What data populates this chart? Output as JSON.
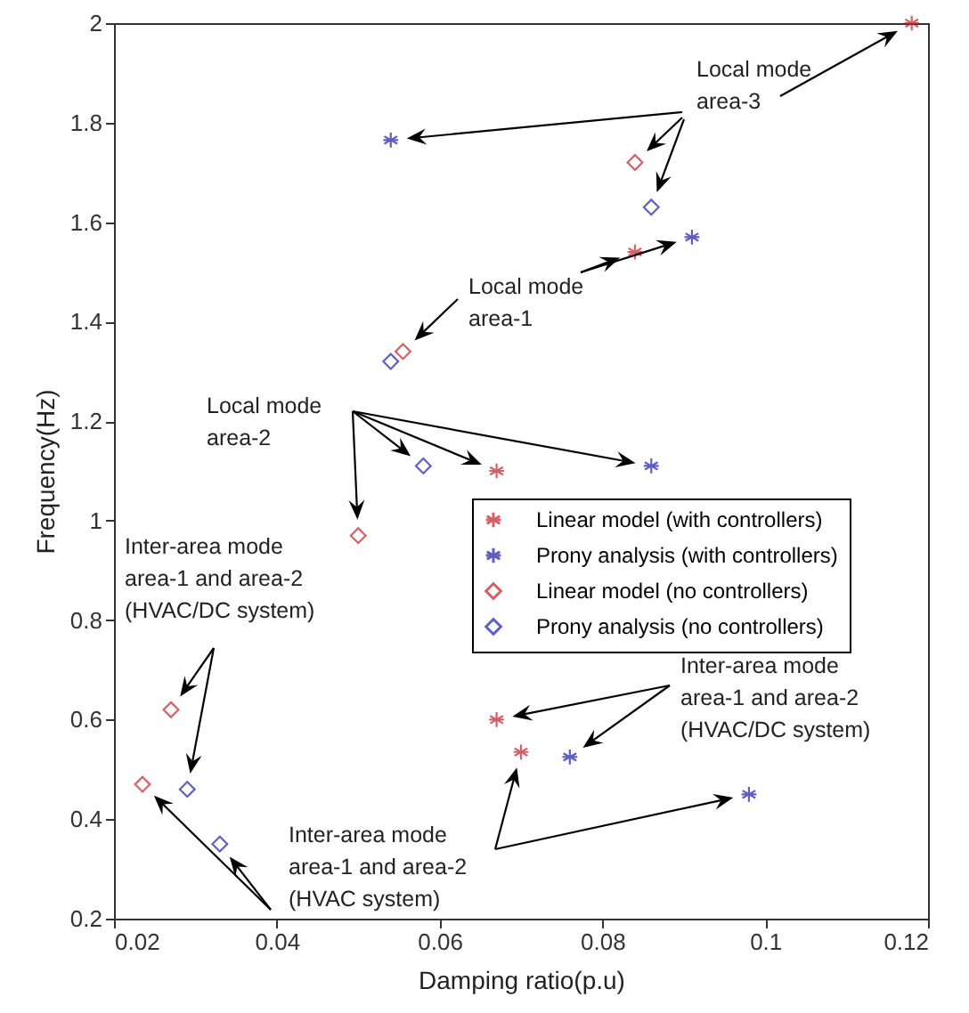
{
  "chart_data": {
    "type": "scatter",
    "xlabel": "Damping ratio(p.u)",
    "ylabel": "Frequency(Hz)",
    "xlim": [
      0.02,
      0.12
    ],
    "xticks": [
      0.02,
      0.04,
      0.06,
      0.08,
      0.1,
      0.12
    ],
    "ylim": [
      0.2,
      2
    ],
    "yticks": [
      0.2,
      0.4,
      0.6,
      0.8,
      1,
      1.2,
      1.4,
      1.6,
      1.8,
      2
    ],
    "grid": false,
    "legend": "right",
    "series": [
      {
        "name": "Linear model (with controllers)",
        "color": "#c0202a",
        "marker": "cross",
        "x": [
          0.118,
          0.084,
          0.067,
          0.067,
          0.07
        ],
        "values": [
          2.0,
          1.54,
          1.1,
          0.6,
          0.535
        ]
      },
      {
        "name": "Prony analysis (with controllers)",
        "color": "#1c1ca8",
        "marker": "cross",
        "x": [
          0.054,
          0.091,
          0.086,
          0.076,
          0.098
        ],
        "values": [
          1.765,
          1.57,
          1.11,
          0.525,
          0.45
        ]
      },
      {
        "name": "Linear model (no controllers)",
        "color": "#c0202a",
        "marker": "diamond",
        "x": [
          0.084,
          0.0555,
          0.05,
          0.027,
          0.0235
        ],
        "values": [
          1.72,
          1.34,
          0.97,
          0.62,
          0.47
        ]
      },
      {
        "name": "Prony analysis (no controllers)",
        "color": "#1c1ca8",
        "marker": "diamond",
        "x": [
          0.086,
          0.054,
          0.058,
          0.029,
          0.033
        ],
        "values": [
          1.63,
          1.32,
          1.11,
          0.46,
          0.35
        ]
      }
    ],
    "annotations": [
      "Local mode\narea-3",
      "Local mode\narea-1",
      "Local mode\narea-2",
      "Inter-area mode\narea-1 and area-2\n(HVAC/DC system)",
      "Inter-area mode\narea-1 and area-2\n(HVAC/DC system)",
      "Inter-area mode\narea-1 and area-2\n(HVAC system)"
    ]
  }
}
